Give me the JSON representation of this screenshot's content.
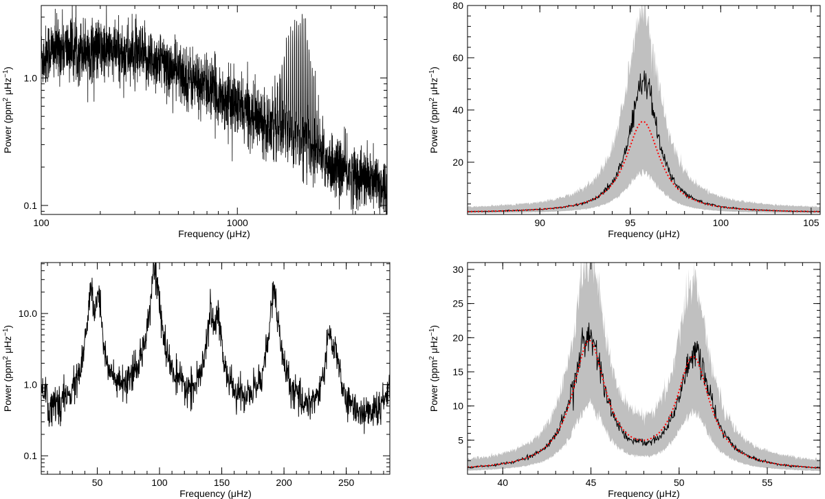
{
  "chart_data": [
    {
      "id": "top-left",
      "type": "line",
      "xscale": "log",
      "yscale": "log",
      "xlim": [
        100,
        5800
      ],
      "ylim": [
        0.085,
        3.7
      ],
      "xticks": [
        100,
        1000
      ],
      "xtick_labels": [
        "100",
        "1000"
      ],
      "yticks": [
        0.1,
        1.0
      ],
      "ytick_labels": [
        "0.1",
        "1.0"
      ],
      "xlabel": "Frequency (μHz)",
      "ylabel": "Power (ppm² μHz⁻¹)",
      "background": {
        "anchors_x": [
          100,
          130,
          200,
          300,
          400,
          500,
          700,
          1000,
          1500,
          2000,
          2500,
          3000,
          4000,
          5800
        ],
        "anchors_y": [
          1.6,
          1.7,
          1.65,
          1.5,
          1.35,
          1.1,
          0.85,
          0.6,
          0.42,
          0.32,
          0.25,
          0.21,
          0.17,
          0.14
        ]
      },
      "mode_comb": {
        "center": 2050,
        "spacing": 45,
        "width": 260,
        "peak": 3.6
      },
      "grid": false,
      "series": [
        {
          "color": "#000000"
        }
      ]
    },
    {
      "id": "top-right",
      "type": "line",
      "xlim": [
        86,
        105.5
      ],
      "ylim": [
        0,
        80
      ],
      "xticks": [
        90,
        95,
        100,
        105
      ],
      "xtick_labels": [
        "90",
        "95",
        "100",
        "105"
      ],
      "yticks": [
        20,
        40,
        60,
        80
      ],
      "ytick_labels": [
        "20",
        "40",
        "60",
        "80"
      ],
      "xlabel": "Frequency (μHz)",
      "ylabel": "Power (ppm² μHz⁻¹)",
      "peaks": [
        {
          "center": 95.7,
          "height": 35,
          "width": 1.15
        }
      ],
      "observed_peaks": [
        {
          "center": 95.75,
          "height": 51,
          "width": 0.95
        }
      ],
      "band_factor": [
        0.45,
        2.15
      ],
      "baseline": 0.6,
      "grid": false,
      "series": [
        {
          "color": "#000000"
        },
        {
          "color": "#ff0000",
          "style": "dotted"
        },
        {
          "color": "#c0c0c0",
          "style": "band"
        }
      ]
    },
    {
      "id": "bottom-left",
      "type": "line",
      "yscale": "log",
      "xlim": [
        5,
        285
      ],
      "ylim": [
        0.055,
        52
      ],
      "xticks": [
        50,
        100,
        150,
        200,
        250
      ],
      "xtick_labels": [
        "50",
        "100",
        "150",
        "200",
        "250"
      ],
      "yticks": [
        0.1,
        1.0,
        10.0
      ],
      "ytick_labels": [
        "0.1",
        "1.0",
        "10.0"
      ],
      "xlabel": "Frequency (μHz)",
      "ylabel": "Power (ppm² μHz⁻¹)",
      "baseline": 0.3,
      "peaks": [
        {
          "center": 45,
          "height": 19,
          "width": 2.0
        },
        {
          "center": 51,
          "height": 16,
          "width": 2.0
        },
        {
          "center": 96,
          "height": 47,
          "width": 2.3
        },
        {
          "center": 91,
          "height": 0.9,
          "width": 1.5
        },
        {
          "center": 141,
          "height": 8.5,
          "width": 2.2
        },
        {
          "center": 146.5,
          "height": 9.5,
          "width": 2.2
        },
        {
          "center": 192,
          "height": 22,
          "width": 2.2
        },
        {
          "center": 236,
          "height": 4.3,
          "width": 2.2
        },
        {
          "center": 241.5,
          "height": 2.7,
          "width": 2.2
        },
        {
          "center": 288,
          "height": 2.4,
          "width": 2.5
        }
      ],
      "grid": false,
      "series": [
        {
          "color": "#000000"
        }
      ]
    },
    {
      "id": "bottom-right",
      "type": "line",
      "xlim": [
        38,
        58
      ],
      "ylim": [
        0,
        31
      ],
      "xticks": [
        40,
        45,
        50,
        55
      ],
      "xtick_labels": [
        "40",
        "45",
        "50",
        "55"
      ],
      "yticks": [
        5,
        10,
        15,
        20,
        25,
        30
      ],
      "ytick_labels": [
        "5",
        "10",
        "15",
        "20",
        "25",
        "30"
      ],
      "xlabel": "Frequency (μHz)",
      "ylabel": "Power (ppm² μHz⁻¹)",
      "peaks": [
        {
          "center": 44.9,
          "height": 18.6,
          "width": 1.15
        },
        {
          "center": 50.8,
          "height": 16.2,
          "width": 1.15
        }
      ],
      "observed_peaks": [
        {
          "center": 44.85,
          "height": 19.6,
          "width": 1.1
        },
        {
          "center": 50.9,
          "height": 16.8,
          "width": 1.1
        }
      ],
      "band_factor": [
        0.52,
        1.6
      ],
      "baseline": 0.4,
      "grid": false,
      "series": [
        {
          "color": "#000000"
        },
        {
          "color": "#ff0000",
          "style": "dotted"
        },
        {
          "color": "#c0c0c0",
          "style": "band"
        }
      ]
    }
  ]
}
